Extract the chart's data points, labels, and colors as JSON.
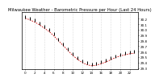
{
  "title": "Milwaukee Weather - Barometric Pressure per Hour (Last 24 Hours)",
  "hours": [
    0,
    1,
    2,
    3,
    4,
    5,
    6,
    7,
    8,
    9,
    10,
    11,
    12,
    13,
    14,
    15,
    16,
    17,
    18,
    19,
    20,
    21,
    22,
    23
  ],
  "pressure": [
    30.21,
    30.18,
    30.14,
    30.09,
    30.03,
    29.97,
    29.89,
    29.8,
    29.71,
    29.62,
    29.53,
    29.46,
    29.4,
    29.36,
    29.34,
    29.35,
    29.38,
    29.41,
    29.45,
    29.49,
    29.52,
    29.54,
    29.56,
    29.57
  ],
  "line_color": "#cc0000",
  "marker_color": "#000000",
  "background_color": "#ffffff",
  "grid_color": "#bbbbbb",
  "ylim_min": 29.28,
  "ylim_max": 30.32,
  "title_fontsize": 3.8,
  "tick_fontsize": 3.0,
  "ytick_labels": [
    "30.2",
    "30.1",
    "30.0",
    "29.9",
    "29.8",
    "29.7",
    "29.6",
    "29.5",
    "29.4",
    "29.3"
  ],
  "ytick_values": [
    30.2,
    30.1,
    30.0,
    29.9,
    29.8,
    29.7,
    29.6,
    29.5,
    29.4,
    29.3
  ],
  "xtick_positions": [
    0,
    2,
    4,
    6,
    8,
    10,
    12,
    14,
    16,
    18,
    20,
    22
  ],
  "xtick_labels": [
    "0",
    "2",
    "4",
    "6",
    "8",
    "10",
    "12",
    "14",
    "16",
    "18",
    "20",
    "22"
  ]
}
